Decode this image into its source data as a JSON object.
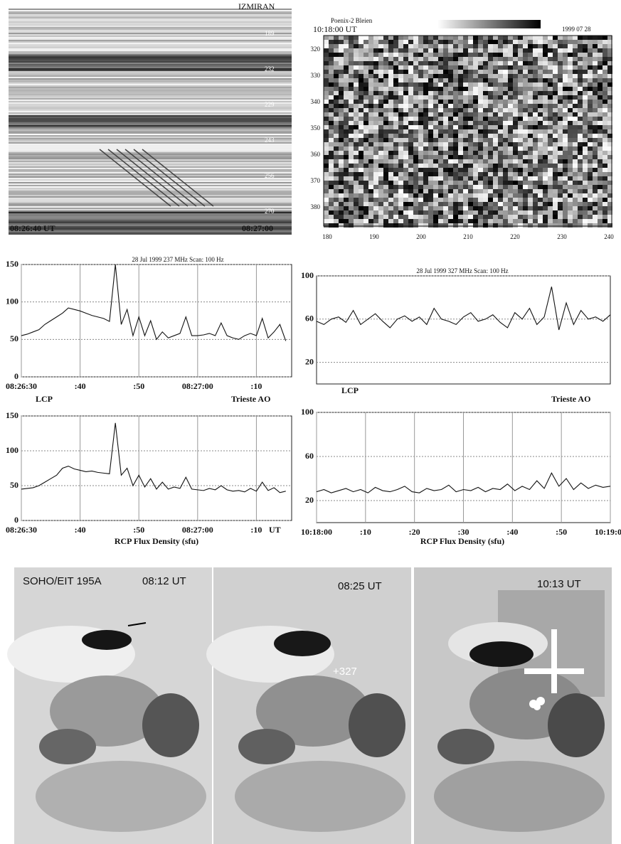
{
  "spectrograms": [
    {
      "title": "IZMIRAN",
      "start_time": "08:26:40 UT",
      "end_time": "08:27:00",
      "freq_labels": [
        "189",
        "232",
        "229",
        "243",
        "256",
        "270"
      ]
    },
    {
      "title": "Poenix-2 Bleien",
      "time": "10:18:00 UT",
      "date": "1999 07 28",
      "yticks": [
        "320",
        "330",
        "340",
        "350",
        "360",
        "370",
        "380"
      ],
      "xticks": [
        "180",
        "190",
        "200",
        "210",
        "220",
        "230",
        "240"
      ]
    }
  ],
  "chart_data": [
    {
      "type": "line",
      "title": "28 Jul 1999     237 MHz   Scan: 100 Hz",
      "polarization": "LCP",
      "observatory": "Trieste AO",
      "x": [
        0,
        1,
        2,
        3,
        4,
        5,
        6,
        7,
        8,
        9,
        10,
        11,
        12,
        13,
        14,
        15,
        16,
        17,
        18,
        19,
        20,
        21,
        22,
        23,
        24,
        25,
        26,
        27,
        28,
        29,
        30,
        31,
        32,
        33,
        34,
        35,
        36,
        37,
        38,
        39,
        40,
        41,
        42,
        43,
        44,
        45
      ],
      "series": [
        {
          "color": "#111111",
          "values": [
            55,
            57,
            60,
            63,
            70,
            75,
            80,
            85,
            92,
            90,
            88,
            85,
            82,
            80,
            78,
            74,
            150,
            70,
            90,
            55,
            80,
            55,
            75,
            50,
            60,
            52,
            55,
            58,
            80,
            55,
            55,
            56,
            58,
            55,
            72,
            55,
            52,
            50,
            55,
            58,
            55,
            78,
            52,
            60,
            70,
            48
          ]
        }
      ],
      "xlim": [
        0,
        46
      ],
      "ylim": [
        0,
        150
      ],
      "xticks": [
        {
          "value": 0,
          "label": "08:26:30"
        },
        {
          "value": 10,
          "label": ":40"
        },
        {
          "value": 20,
          "label": ":50"
        },
        {
          "value": 30,
          "label": "08:27:00"
        },
        {
          "value": 40,
          "label": ":10"
        }
      ],
      "yticks": [
        0,
        50,
        100,
        150
      ],
      "grid": true
    },
    {
      "type": "line",
      "title": "28 Jul 1999    327 MHz   Scan: 100 Hz",
      "polarization": "LCP",
      "observatory": "Trieste AO",
      "x": [
        0,
        1.5,
        3,
        4.5,
        6,
        7.5,
        9,
        10.5,
        12,
        13.5,
        15,
        16.5,
        18,
        19.5,
        21,
        22.5,
        24,
        25.5,
        27,
        28.5,
        30,
        31.5,
        33,
        34.5,
        36,
        37.5,
        39,
        40.5,
        42,
        43.5,
        45,
        46.5,
        48,
        49.5,
        51,
        52.5,
        54,
        55.5,
        57,
        58.5,
        60
      ],
      "series": [
        {
          "color": "#111111",
          "values": [
            58,
            55,
            60,
            62,
            57,
            68,
            55,
            60,
            65,
            58,
            52,
            60,
            63,
            58,
            62,
            55,
            70,
            60,
            58,
            55,
            62,
            66,
            58,
            60,
            64,
            57,
            52,
            66,
            60,
            70,
            55,
            62,
            90,
            50,
            75,
            55,
            68,
            60,
            62,
            58,
            64
          ]
        }
      ],
      "xlim": [
        0,
        60
      ],
      "ylim": [
        0,
        100
      ],
      "yticks": [
        20,
        60,
        100
      ],
      "grid": true
    },
    {
      "type": "line",
      "xlabel": "RCP Flux Density (sfu)",
      "x_unit": "UT",
      "x": [
        0,
        1,
        2,
        3,
        4,
        5,
        6,
        7,
        8,
        9,
        10,
        11,
        12,
        13,
        14,
        15,
        16,
        17,
        18,
        19,
        20,
        21,
        22,
        23,
        24,
        25,
        26,
        27,
        28,
        29,
        30,
        31,
        32,
        33,
        34,
        35,
        36,
        37,
        38,
        39,
        40,
        41,
        42,
        43,
        44,
        45
      ],
      "series": [
        {
          "color": "#111111",
          "values": [
            45,
            46,
            47,
            50,
            55,
            60,
            65,
            75,
            78,
            74,
            72,
            70,
            71,
            69,
            68,
            67,
            140,
            65,
            75,
            50,
            65,
            48,
            60,
            45,
            55,
            45,
            48,
            46,
            62,
            45,
            44,
            43,
            46,
            44,
            50,
            44,
            42,
            43,
            41,
            46,
            42,
            55,
            43,
            47,
            40,
            42
          ]
        }
      ],
      "xlim": [
        0,
        46
      ],
      "ylim": [
        0,
        150
      ],
      "xticks": [
        {
          "value": 0,
          "label": "08:26:30"
        },
        {
          "value": 10,
          "label": ":40"
        },
        {
          "value": 20,
          "label": ":50"
        },
        {
          "value": 30,
          "label": "08:27:00"
        },
        {
          "value": 40,
          "label": ":10"
        }
      ],
      "yticks": [
        0,
        50,
        100,
        150
      ],
      "grid": true
    },
    {
      "type": "line",
      "xlabel": "RCP Flux Density (sfu)",
      "x": [
        0,
        1.5,
        3,
        4.5,
        6,
        7.5,
        9,
        10.5,
        12,
        13.5,
        15,
        16.5,
        18,
        19.5,
        21,
        22.5,
        24,
        25.5,
        27,
        28.5,
        30,
        31.5,
        33,
        34.5,
        36,
        37.5,
        39,
        40.5,
        42,
        43.5,
        45,
        46.5,
        48,
        49.5,
        51,
        52.5,
        54,
        55.5,
        57,
        58.5,
        60
      ],
      "series": [
        {
          "color": "#111111",
          "values": [
            28,
            30,
            27,
            29,
            31,
            28,
            30,
            27,
            32,
            29,
            28,
            30,
            33,
            28,
            27,
            31,
            29,
            30,
            34,
            28,
            30,
            29,
            32,
            28,
            31,
            30,
            35,
            29,
            33,
            30,
            38,
            31,
            45,
            33,
            40,
            30,
            36,
            31,
            34,
            32,
            33
          ]
        }
      ],
      "xlim": [
        0,
        60
      ],
      "ylim": [
        0,
        100
      ],
      "xticks": [
        {
          "value": 0,
          "label": "10:18:00"
        },
        {
          "value": 10,
          "label": ":10"
        },
        {
          "value": 20,
          "label": ":20"
        },
        {
          "value": 30,
          "label": ":30"
        },
        {
          "value": 40,
          "label": ":40"
        },
        {
          "value": 50,
          "label": ":50"
        },
        {
          "value": 60,
          "label": "10:19:00"
        }
      ],
      "yticks": [
        20,
        60,
        100
      ],
      "grid": true
    }
  ],
  "eit_images": [
    {
      "label": "SOHO/EIT 195A",
      "time": "08:12 UT"
    },
    {
      "time": "08:25 UT",
      "marker": "+327"
    },
    {
      "time": "10:13 UT"
    }
  ]
}
